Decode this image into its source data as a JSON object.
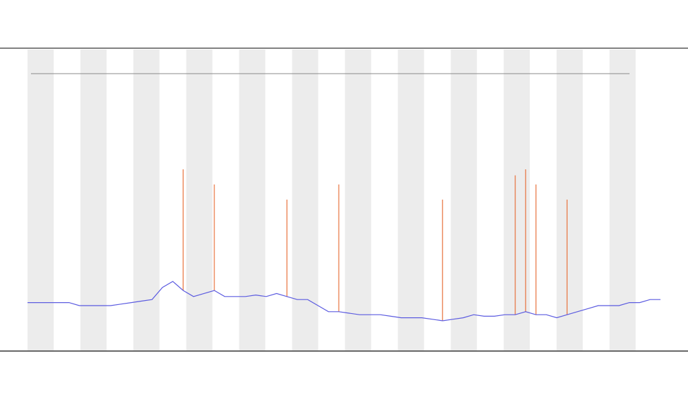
{
  "chart_data": {
    "type": "line",
    "categories": [
      null,
      null,
      null,
      null,
      null,
      null,
      null,
      null,
      null,
      null,
      null,
      null,
      null,
      null,
      null,
      null,
      null,
      null,
      null,
      null,
      null,
      null,
      null,
      null,
      null,
      null,
      null,
      null,
      null,
      null,
      null,
      null,
      null,
      null,
      null,
      null,
      null,
      null,
      null,
      null,
      null,
      null,
      null,
      null,
      null,
      null,
      null,
      null,
      null,
      null,
      null,
      null,
      null,
      null,
      null,
      null,
      null,
      null,
      null,
      null,
      null,
      null
    ],
    "series": [
      {
        "color": "#5a5ae0",
        "values": [
          16,
          16,
          16,
          16,
          16,
          15,
          15,
          15,
          15,
          15.5,
          16,
          16.5,
          17,
          21,
          23,
          20,
          18,
          19,
          20,
          18,
          18,
          18,
          18.5,
          18,
          19,
          18,
          17,
          17,
          15,
          13,
          13,
          12.5,
          12,
          12,
          12,
          11.5,
          11,
          11,
          11,
          10.5,
          10,
          10.5,
          11,
          12,
          11.5,
          11.5,
          12,
          12,
          13,
          12,
          12,
          11,
          12,
          13,
          14,
          15,
          15,
          15,
          16,
          16,
          17,
          17
        ]
      },
      {
        "color": "#e8703a",
        "values": [
          null,
          null,
          null,
          null,
          null,
          null,
          null,
          null,
          null,
          null,
          null,
          null,
          null,
          null,
          null,
          60,
          null,
          null,
          55,
          null,
          null,
          null,
          null,
          null,
          null,
          50,
          null,
          null,
          null,
          null,
          55,
          null,
          null,
          null,
          null,
          null,
          null,
          null,
          null,
          null,
          50,
          null,
          null,
          null,
          null,
          null,
          null,
          58,
          60,
          55,
          null,
          null,
          50,
          null,
          null,
          null,
          null,
          null,
          null,
          null,
          null,
          null
        ]
      }
    ],
    "ylim": [
      0,
      100
    ]
  }
}
